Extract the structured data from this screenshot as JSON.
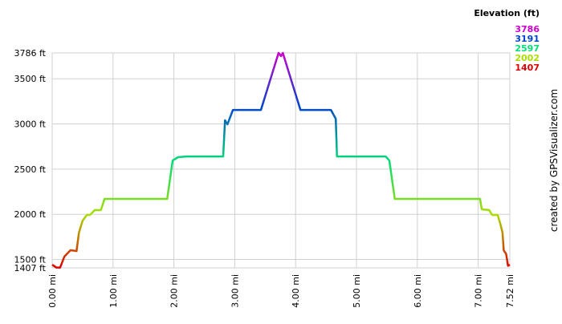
{
  "chart_data": {
    "type": "line",
    "x": [
      0,
      0.07,
      0.13,
      0.2,
      0.3,
      0.4,
      0.44,
      0.5,
      0.57,
      0.62,
      0.7,
      0.8,
      0.86,
      1.89,
      1.98,
      2.07,
      2.2,
      2.81,
      2.84,
      2.88,
      2.97,
      3.43,
      3.72,
      3.76,
      3.79,
      4.08,
      4.58,
      4.66,
      4.68,
      5.48,
      5.54,
      5.63,
      7.03,
      7.06,
      7.18,
      7.23,
      7.32,
      7.36,
      7.4,
      7.42,
      7.46,
      7.49,
      7.52
    ],
    "values": [
      1442,
      1410,
      1410,
      1531,
      1602,
      1593,
      1797,
      1930,
      1993,
      1993,
      2046,
      2046,
      2170,
      2170,
      2596,
      2632,
      2640,
      2640,
      3040,
      2995,
      3155,
      3155,
      3786,
      3750,
      3786,
      3155,
      3155,
      3057,
      2640,
      2640,
      2596,
      2170,
      2170,
      2055,
      2046,
      1993,
      1993,
      1904,
      1797,
      1602,
      1560,
      1430,
      1442
    ],
    "xlim": [
      0,
      7.52
    ],
    "ylim": [
      1407,
      3786
    ],
    "xticks": [
      {
        "value": 0,
        "label": "0.00 mi"
      },
      {
        "value": 1,
        "label": "1.00 mi"
      },
      {
        "value": 2,
        "label": "2.00 mi"
      },
      {
        "value": 3,
        "label": "3.00 mi"
      },
      {
        "value": 4,
        "label": "4.00 mi"
      },
      {
        "value": 5,
        "label": "5.00 mi"
      },
      {
        "value": 6,
        "label": "6.00 mi"
      },
      {
        "value": 7,
        "label": "7.00 mi"
      },
      {
        "value": 7.52,
        "label": "7.52 mi"
      }
    ],
    "yticks": [
      {
        "value": 1407,
        "label": "1407 ft"
      },
      {
        "value": 1500,
        "label": "1500 ft"
      },
      {
        "value": 2000,
        "label": "2000 ft"
      },
      {
        "value": 2500,
        "label": "2500 ft"
      },
      {
        "value": 3000,
        "label": "3000 ft"
      },
      {
        "value": 3500,
        "label": "3500 ft"
      },
      {
        "value": 3786,
        "label": "3786 ft"
      }
    ],
    "grid": true,
    "color_scale": {
      "title": "Elevation (ft)",
      "stops": [
        {
          "value": 3786,
          "color": "#cc00cc"
        },
        {
          "value": 3191,
          "color": "#0044cc"
        },
        {
          "value": 2597,
          "color": "#00dd77"
        },
        {
          "value": 2002,
          "color": "#aadd00"
        },
        {
          "value": 1407,
          "color": "#dd0000"
        }
      ]
    },
    "credit": "created by GPSVisualizer.com"
  }
}
